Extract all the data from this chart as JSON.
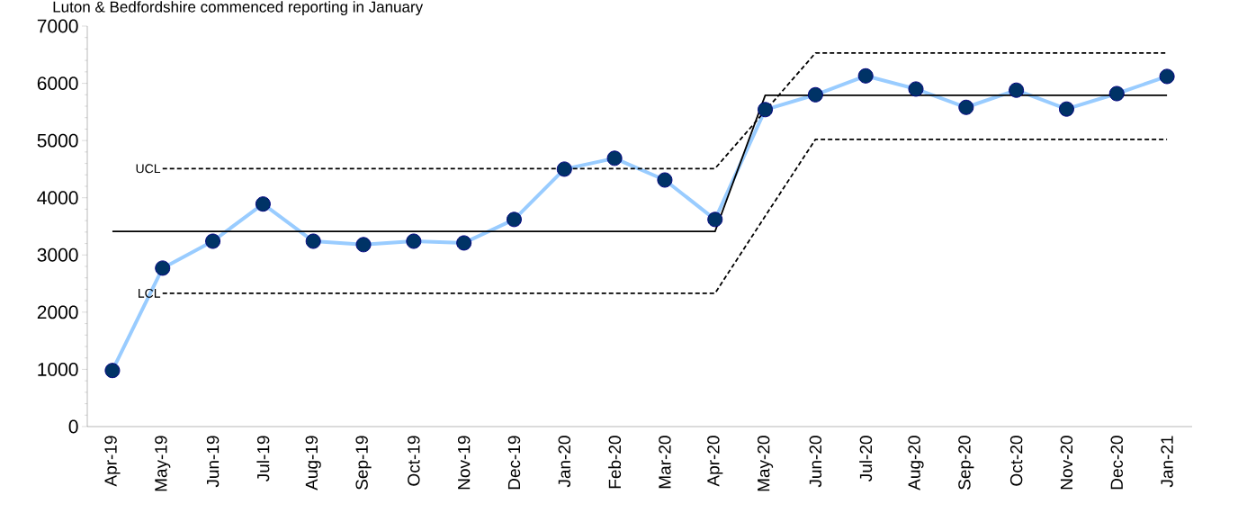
{
  "chart_data": {
    "type": "line",
    "annotations": [
      "Luton & Bedfordshire commenced reporting in January"
    ],
    "categories": [
      "Apr-19",
      "May-19",
      "Jun-19",
      "Jul-19",
      "Aug-19",
      "Sep-19",
      "Oct-19",
      "Nov-19",
      "Dec-19",
      "Jan-20",
      "Feb-20",
      "Mar-20",
      "Apr-20",
      "May-20",
      "Jun-20",
      "Jul-20",
      "Aug-20",
      "Sep-20",
      "Oct-20",
      "Nov-20",
      "Dec-20",
      "Jan-21"
    ],
    "series": [
      {
        "color": "#99ccff",
        "marker": "circle",
        "line_style": "solid",
        "values": [
          980,
          2770,
          3240,
          3890,
          3240,
          3180,
          3240,
          3210,
          3620,
          4500,
          4690,
          4310,
          3620,
          5540,
          5800,
          6130,
          5900,
          5580,
          5880,
          5550,
          5820,
          6120
        ]
      },
      {
        "color": "#000000",
        "marker": "none",
        "line_style": "solid",
        "values": [
          3410,
          3410,
          3410,
          3410,
          3410,
          3410,
          3410,
          3410,
          3410,
          3410,
          3410,
          3410,
          3410,
          5790,
          5790,
          5790,
          5790,
          5790,
          5790,
          5790,
          5790,
          5790
        ]
      },
      {
        "name": "UCL",
        "color": "#000000",
        "marker": "none",
        "line_style": "dashed",
        "values": [
          null,
          4510,
          4510,
          4510,
          4510,
          4510,
          4510,
          4510,
          4510,
          4510,
          4510,
          4510,
          4510,
          5520,
          6530,
          6530,
          6530,
          6530,
          6530,
          6530,
          6530,
          6530
        ]
      },
      {
        "name": "LCL",
        "color": "#000000",
        "marker": "none",
        "line_style": "dashed",
        "values": [
          null,
          2330,
          2330,
          2330,
          2330,
          2330,
          2330,
          2330,
          2330,
          2330,
          2330,
          2330,
          2330,
          3680,
          5020,
          5020,
          5020,
          5020,
          5020,
          5020,
          5020,
          5020
        ]
      }
    ],
    "ylim": [
      0,
      7000
    ],
    "yticks": [
      0,
      1000,
      2000,
      3000,
      4000,
      5000,
      6000,
      7000
    ],
    "grid": false
  }
}
